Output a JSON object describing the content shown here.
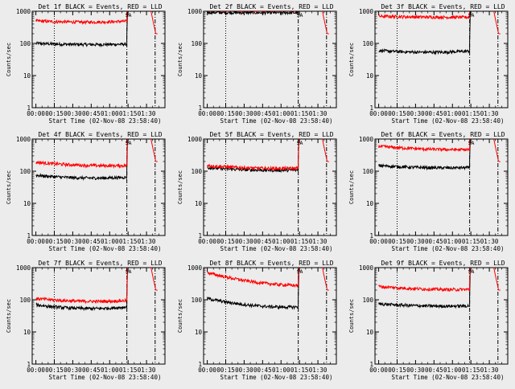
{
  "chart_data": [
    {
      "type": "line",
      "title": "Det 1f BLACK = Events, RED = LLD",
      "ylabel": "Counts/sec",
      "xlabel": "Start Time (02-Nov-08 23:58:40)",
      "yscale": "log",
      "ylim": [
        1,
        1000
      ],
      "yticks": [
        "1",
        "10",
        "100",
        "1000"
      ],
      "xticks": [
        "00:00",
        "00:15",
        "00:30",
        "00:45",
        "01:00",
        "01:15",
        "01:30"
      ],
      "series": [
        {
          "color": "#000000",
          "level_start": 100,
          "level_mid": 88,
          "level_end": 95
        },
        {
          "color": "#ff0000",
          "level_start": 500,
          "level_mid": 430,
          "level_end": 490
        }
      ]
    },
    {
      "type": "line",
      "title": "Det 2f BLACK = Events, RED = LLD",
      "ylabel": "Counts/sec",
      "xlabel": "Start Time (02-Nov-08 23:58:40)",
      "yscale": "log",
      "ylim": [
        1,
        1000
      ],
      "yticks": [
        "1",
        "10",
        "100",
        "1000"
      ],
      "xticks": [
        "00:00",
        "00:15",
        "00:30",
        "00:45",
        "01:00",
        "01:15",
        "01:30"
      ],
      "series": [
        {
          "color": "#000000",
          "level_start": 920,
          "level_mid": 900,
          "level_end": 900
        },
        {
          "color": "#ff0000",
          "level_start": 1100,
          "level_mid": 1080,
          "level_end": 1080
        }
      ]
    },
    {
      "type": "line",
      "title": "Det 3f BLACK = Events, RED = LLD",
      "ylabel": "Counts/sec",
      "xlabel": "Start Time (02-Nov-08 23:58:40)",
      "yscale": "log",
      "ylim": [
        1,
        1000
      ],
      "yticks": [
        "1",
        "10",
        "100",
        "1000"
      ],
      "xticks": [
        "00:00",
        "00:15",
        "00:30",
        "00:45",
        "01:00",
        "01:15",
        "01:30"
      ],
      "series": [
        {
          "color": "#000000",
          "level_start": 60,
          "level_mid": 48,
          "level_end": 58
        },
        {
          "color": "#ff0000",
          "level_start": 700,
          "level_mid": 650,
          "level_end": 650
        }
      ]
    },
    {
      "type": "line",
      "title": "Det 4f BLACK = Events, RED = LLD",
      "ylabel": "Counts/sec",
      "xlabel": "Start Time (02-Nov-08 23:58:40)",
      "yscale": "log",
      "ylim": [
        1,
        1000
      ],
      "yticks": [
        "1",
        "10",
        "100",
        "1000"
      ],
      "xticks": [
        "00:00",
        "00:15",
        "00:30",
        "00:45",
        "01:00",
        "01:15",
        "01:30"
      ],
      "series": [
        {
          "color": "#000000",
          "level_start": 75,
          "level_mid": 55,
          "level_end": 65
        },
        {
          "color": "#ff0000",
          "level_start": 190,
          "level_mid": 140,
          "level_end": 150
        }
      ]
    },
    {
      "type": "line",
      "title": "Det 5f BLACK = Events, RED = LLD",
      "ylabel": "Counts/sec",
      "xlabel": "Start Time (02-Nov-08 23:58:40)",
      "yscale": "log",
      "ylim": [
        1,
        1000
      ],
      "yticks": [
        "1",
        "10",
        "100",
        "1000"
      ],
      "xticks": [
        "00:00",
        "00:15",
        "00:30",
        "00:45",
        "01:00",
        "01:15",
        "01:30"
      ],
      "series": [
        {
          "color": "#000000",
          "level_start": 130,
          "level_mid": 100,
          "level_end": 110
        },
        {
          "color": "#ff0000",
          "level_start": 150,
          "level_mid": 115,
          "level_end": 125
        }
      ]
    },
    {
      "type": "line",
      "title": "Det 6f BLACK = Events, RED = LLD",
      "ylabel": "Counts/sec",
      "xlabel": "Start Time (02-Nov-08 23:58:40)",
      "yscale": "log",
      "ylim": [
        1,
        1000
      ],
      "yticks": [
        "1",
        "10",
        "100",
        "1000"
      ],
      "xticks": [
        "00:00",
        "00:15",
        "00:30",
        "00:45",
        "01:00",
        "01:15",
        "01:30"
      ],
      "series": [
        {
          "color": "#000000",
          "level_start": 150,
          "level_mid": 120,
          "level_end": 130
        },
        {
          "color": "#ff0000",
          "level_start": 600,
          "level_mid": 450,
          "level_end": 470
        }
      ]
    },
    {
      "type": "line",
      "title": "Det 7f BLACK = Events, RED = LLD",
      "ylabel": "Counts/sec",
      "xlabel": "Start Time (02-Nov-08 23:58:40)",
      "yscale": "log",
      "ylim": [
        1,
        1000
      ],
      "yticks": [
        "1",
        "10",
        "100",
        "1000"
      ],
      "xticks": [
        "00:00",
        "00:15",
        "00:30",
        "00:45",
        "01:00",
        "01:15",
        "01:30"
      ],
      "series": [
        {
          "color": "#000000",
          "level_start": 70,
          "level_mid": 45,
          "level_end": 60
        },
        {
          "color": "#ff0000",
          "level_start": 110,
          "level_mid": 80,
          "level_end": 95
        }
      ]
    },
    {
      "type": "line",
      "title": "Det 8f BLACK = Events, RED = LLD",
      "ylabel": "Counts/sec",
      "xlabel": "Start Time (02-Nov-08 23:58:40)",
      "yscale": "log",
      "ylim": [
        1,
        1000
      ],
      "yticks": [
        "1",
        "10",
        "100",
        "1000"
      ],
      "xticks": [
        "00:00",
        "00:15",
        "00:30",
        "00:45",
        "01:00",
        "01:15",
        "01:30"
      ],
      "series": [
        {
          "color": "#000000",
          "level_start": 110,
          "level_mid": 55,
          "level_end": 60
        },
        {
          "color": "#ff0000",
          "level_start": 700,
          "level_mid": 300,
          "level_end": 280
        }
      ]
    },
    {
      "type": "line",
      "title": "Det 9f BLACK = Events, RED = LLD",
      "ylabel": "Counts/sec",
      "xlabel": "Start Time (02-Nov-08 23:58:40)",
      "yscale": "log",
      "ylim": [
        1,
        1000
      ],
      "yticks": [
        "1",
        "10",
        "100",
        "1000"
      ],
      "xticks": [
        "00:00",
        "00:15",
        "00:30",
        "00:45",
        "01:00",
        "01:15",
        "01:30"
      ],
      "series": [
        {
          "color": "#000000",
          "level_start": 75,
          "level_mid": 60,
          "level_end": 65
        },
        {
          "color": "#ff0000",
          "level_start": 260,
          "level_mid": 200,
          "level_end": 210
        }
      ]
    }
  ],
  "markers": {
    "label": "SA",
    "dotted_time": "00:15",
    "dashdot_times": [
      "01:14",
      "01:37"
    ]
  }
}
